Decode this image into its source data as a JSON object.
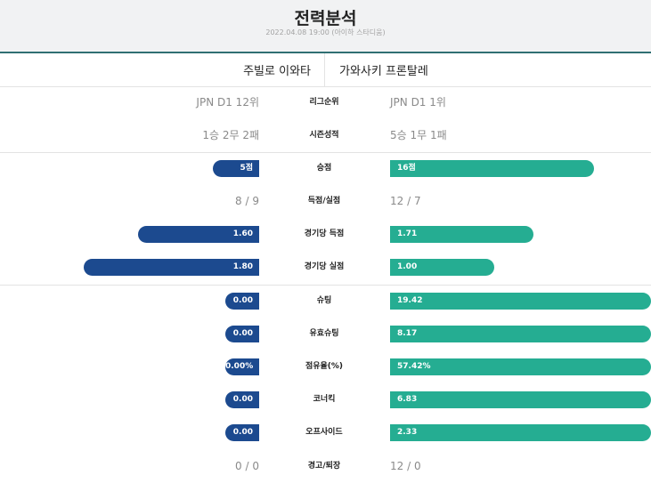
{
  "header": {
    "title": "전력분석",
    "subtitle": "2022.04.08 19:00 (아이하 스타디움)"
  },
  "teams": {
    "home": "주빌로 이와타",
    "away": "가와사키 프론탈레"
  },
  "rows": [
    {
      "label": "리그순위",
      "home": "JPN D1 12위",
      "away": "JPN D1 1위"
    },
    {
      "label": "시즌성적",
      "home": "1승 2무 2패",
      "away": "5승 1무 1패"
    },
    {
      "label": "승점",
      "home": "5점",
      "away": "16점",
      "home_fill": 0.18,
      "away_fill": 0.78
    },
    {
      "label": "득점/실점",
      "home": "8 / 9",
      "away": "12 / 7"
    },
    {
      "label": "경기당 득점",
      "home": "1.60",
      "away": "1.71",
      "home_fill": 0.47,
      "away_fill": 0.55
    },
    {
      "label": "경기당 실점",
      "home": "1.80",
      "away": "1.00",
      "home_fill": 0.68,
      "away_fill": 0.4
    },
    {
      "label": "슈팅",
      "home": "0.00",
      "away": "19.42",
      "home_fill": 0.13,
      "away_fill": 1.0
    },
    {
      "label": "유효슈팅",
      "home": "0.00",
      "away": "8.17",
      "home_fill": 0.13,
      "away_fill": 1.0
    },
    {
      "label": "점유율(%)",
      "home": "0.00%",
      "away": "57.42%",
      "home_fill": 0.13,
      "away_fill": 1.0
    },
    {
      "label": "코너킥",
      "home": "0.00",
      "away": "6.83",
      "home_fill": 0.13,
      "away_fill": 1.0
    },
    {
      "label": "오프사이드",
      "home": "0.00",
      "away": "2.33",
      "home_fill": 0.13,
      "away_fill": 1.0
    },
    {
      "label": "경고/퇴장",
      "home": "0 / 0",
      "away": "12 / 0"
    }
  ],
  "colors": {
    "home_bar": "#1c4a8f",
    "away_bar": "#25ad92",
    "header_rule": "#2f6f73"
  }
}
